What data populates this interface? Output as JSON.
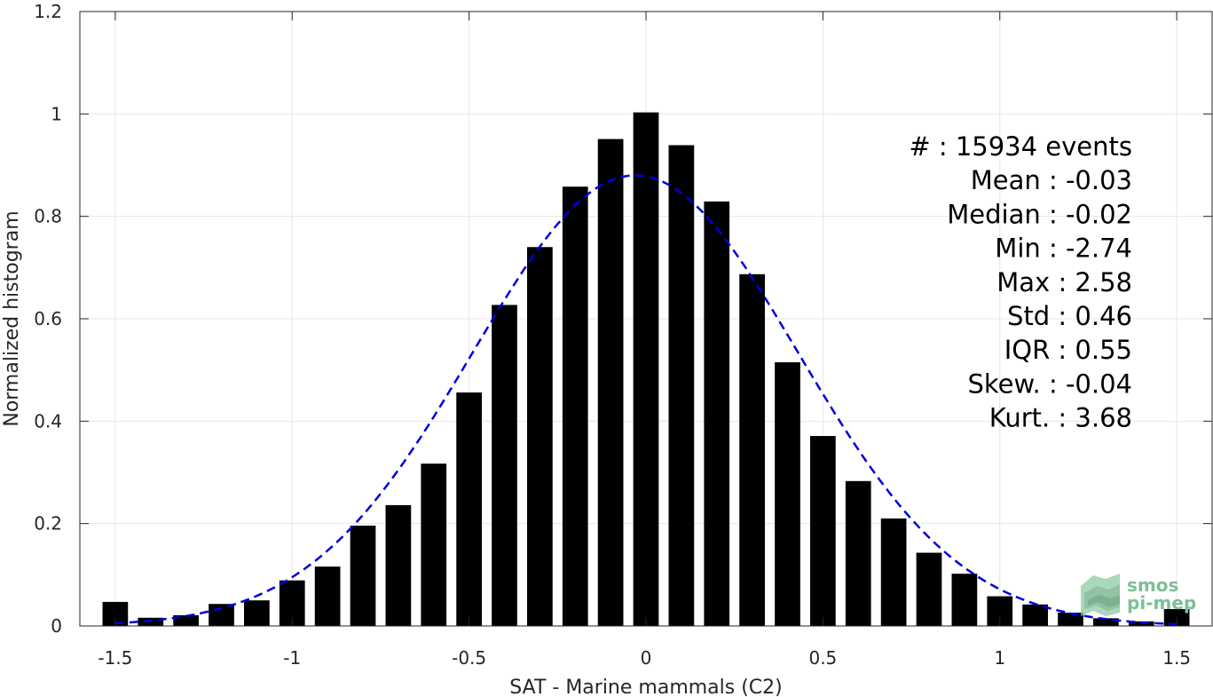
{
  "chart_data": {
    "type": "bar",
    "title": "",
    "xlabel": "SAT - Marine mammals (C2)",
    "ylabel": "Normalized histogram",
    "xlim": [
      -1.6,
      1.6
    ],
    "ylim": [
      0,
      1.2
    ],
    "xticks": [
      -1.5,
      -1,
      -0.5,
      0,
      0.5,
      1,
      1.5
    ],
    "xtick_labels": [
      "-1.5",
      "-1",
      "-0.5",
      "0",
      "0.5",
      "1",
      "1.5"
    ],
    "yticks": [
      0,
      0.2,
      0.4,
      0.6,
      0.8,
      1,
      1.2
    ],
    "ytick_labels": [
      "0",
      "0.2",
      "0.4",
      "0.6",
      "0.8",
      "1",
      "1.2"
    ],
    "grid": true,
    "bar_color": "#000000",
    "bin_width": 0.1,
    "x": [
      -1.5,
      -1.4,
      -1.3,
      -1.2,
      -1.1,
      -1.0,
      -0.9,
      -0.8,
      -0.7,
      -0.6,
      -0.5,
      -0.4,
      -0.3,
      -0.2,
      -0.1,
      0.0,
      0.1,
      0.2,
      0.3,
      0.4,
      0.5,
      0.6,
      0.7,
      0.8,
      0.9,
      1.0,
      1.1,
      1.2,
      1.3,
      1.4,
      1.5
    ],
    "values": [
      0.047,
      0.016,
      0.021,
      0.043,
      0.05,
      0.089,
      0.116,
      0.196,
      0.236,
      0.317,
      0.456,
      0.627,
      0.74,
      0.858,
      0.951,
      1.003,
      0.939,
      0.829,
      0.687,
      0.515,
      0.371,
      0.283,
      0.21,
      0.143,
      0.102,
      0.058,
      0.042,
      0.026,
      0.015,
      0.009,
      0.033
    ],
    "fit_curve": {
      "style": "dashed",
      "color": "#0000dd",
      "mean": -0.03,
      "std": 0.46,
      "peak": 0.88
    },
    "stats": [
      "#  : 15934 events",
      "Mean : -0.03",
      "Median : -0.02",
      "Min : -2.74",
      "Max : 2.58",
      "Std : 0.46",
      "IQR : 0.55",
      "Skew. : -0.04",
      "Kurt. : 3.68"
    ]
  },
  "logo": {
    "line1": "smos",
    "line2": "pi-mep",
    "color": "#7dbf96"
  }
}
